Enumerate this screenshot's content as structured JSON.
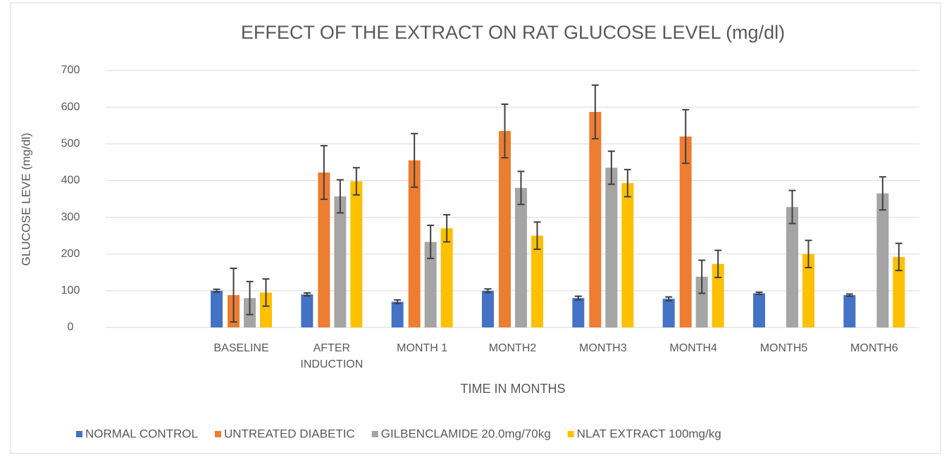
{
  "chart_data": {
    "type": "bar",
    "title": "EFFECT OF THE EXTRACT ON RAT GLUCOSE LEVEL (mg/dl)",
    "x_label": "TIME IN MONTHS",
    "y_label": "GLUCOSE LEVE (mg/dl)",
    "categories": [
      null,
      "BASELINE",
      "AFTER\nINDUCTION",
      "MONTH 1",
      "MONTH2",
      "MONTH3",
      "MONTH4",
      "MONTH5",
      "MONTH6"
    ],
    "series": [
      {
        "name": "NORMAL CONTROL",
        "color": "#4472c4",
        "values": [
          null,
          100,
          90,
          70,
          100,
          80,
          78,
          93,
          88
        ],
        "errors": [
          null,
          4,
          4,
          5,
          5,
          5,
          5,
          3,
          3
        ]
      },
      {
        "name": "UNTREATED DIABETIC",
        "color": "#ed7d31",
        "values": [
          null,
          88,
          422,
          455,
          535,
          587,
          520,
          null,
          null
        ],
        "errors": [
          null,
          73,
          73,
          73,
          73,
          73,
          73,
          null,
          null
        ]
      },
      {
        "name": "GILBENCLAMIDE 20.0mg/70kg",
        "color": "#a5a5a5",
        "values": [
          null,
          80,
          357,
          233,
          380,
          435,
          138,
          328,
          365
        ],
        "errors": [
          null,
          45,
          45,
          45,
          45,
          45,
          45,
          45,
          45
        ]
      },
      {
        "name": "NLAT EXTRACT 100mg/kg",
        "color": "#ffc000",
        "values": [
          null,
          95,
          398,
          270,
          250,
          393,
          173,
          200,
          192
        ],
        "errors": [
          null,
          37,
          37,
          37,
          37,
          37,
          37,
          37,
          37
        ]
      }
    ],
    "ylim": [
      0,
      700
    ],
    "yticks": [
      0,
      100,
      200,
      300,
      400,
      500,
      600,
      700
    ],
    "grid": true,
    "legend": "bottom"
  }
}
